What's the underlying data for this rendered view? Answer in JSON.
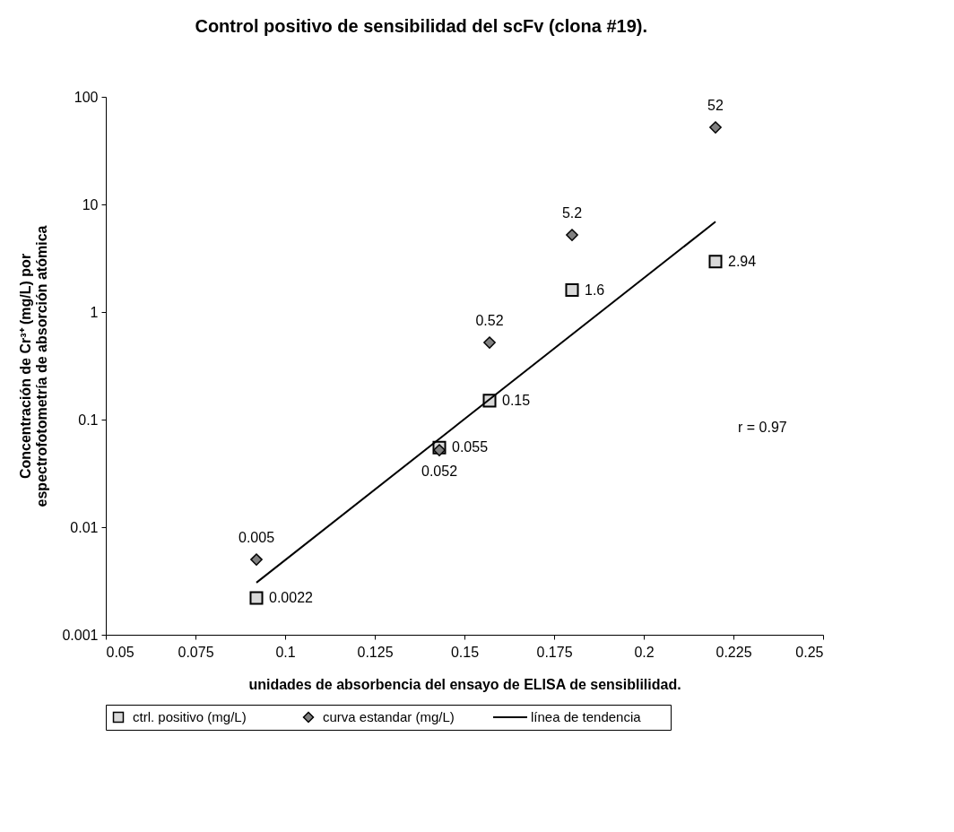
{
  "chart_data": {
    "type": "scatter",
    "title": "Control positivo de sensibilidad del scFv (clona #19).",
    "xlabel": "unidades de absorbencia del ensayo de ELISA de sensiblilidad.",
    "ylabel": "Concentración de Cr³⁺ (mg/L)  por\nespectrofotometría de absorción atómica",
    "x": [
      0.092,
      0.143,
      0.157,
      0.18,
      0.22
    ],
    "series": [
      {
        "name": "ctrl. positivo (mg/L)",
        "color": "#d9d9d9",
        "marker": "square",
        "values": [
          0.0022,
          0.055,
          0.15,
          1.6,
          2.94
        ],
        "value_labels": [
          "0.0022",
          "0.055",
          "0.15",
          "1.6",
          "2.94"
        ]
      },
      {
        "name": "curva estandar (mg/L)",
        "color": "#808080",
        "marker": "diamond",
        "values": [
          0.005,
          0.052,
          0.52,
          5.2,
          52
        ],
        "value_labels": [
          "0.005",
          "0.052",
          "0.52",
          "5.2",
          "52"
        ]
      },
      {
        "name": "línea de tendencia",
        "type": "line",
        "color": "#000000",
        "marker": "none",
        "x": [
          0.092,
          0.22
        ],
        "values": [
          0.00305,
          6.9
        ]
      }
    ],
    "log": "y",
    "xlim": [
      0.05,
      0.25
    ],
    "xticks": [
      0.05,
      0.075,
      0.1,
      0.125,
      0.15,
      0.175,
      0.2,
      0.225,
      0.25
    ],
    "ylim": [
      0.001,
      100
    ],
    "yticks": [
      0.001,
      0.01,
      0.1,
      1,
      10,
      100
    ],
    "grid": false,
    "legend": "bottom",
    "annotations": [
      "r = 0.97"
    ]
  }
}
